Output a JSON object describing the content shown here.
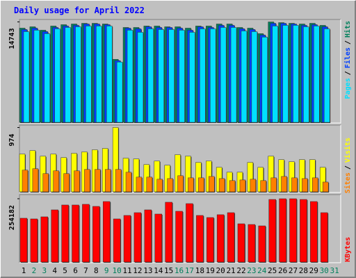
{
  "legend_separator": "/",
  "chart_data": [
    {
      "type": "bar",
      "title": "Daily usage for April 2022",
      "ylim": [
        0,
        15000
      ],
      "yticks": [
        14743
      ],
      "series": [
        {
          "name": "Hits",
          "color": "#00805C",
          "values": [
            13830,
            14030,
            13530,
            14140,
            14340,
            14440,
            14540,
            14540,
            14440,
            9250,
            13930,
            13930,
            14140,
            14140,
            14030,
            14030,
            13830,
            14140,
            14140,
            14440,
            14440,
            13930,
            13830,
            13020,
            14743,
            14640,
            14540,
            14440,
            14540,
            14240,
            null
          ]
        },
        {
          "name": "Files",
          "color": "#0040FF",
          "values": [
            13630,
            13830,
            13320,
            13930,
            14140,
            14240,
            14440,
            14440,
            14340,
            9050,
            13830,
            13730,
            14030,
            13930,
            13930,
            13830,
            13530,
            14030,
            13930,
            14240,
            14240,
            13730,
            13630,
            12810,
            14540,
            14540,
            14440,
            14240,
            14340,
            14030,
            null
          ]
        },
        {
          "name": "Pages",
          "color": "#00E0FF",
          "values": [
            13320,
            13530,
            13020,
            13730,
            13930,
            14030,
            14140,
            14140,
            14140,
            8850,
            13530,
            13220,
            13730,
            13630,
            13630,
            13530,
            13220,
            13730,
            13730,
            13930,
            13930,
            13420,
            13320,
            12510,
            14140,
            14240,
            14240,
            14030,
            14140,
            13730,
            null
          ]
        }
      ]
    },
    {
      "type": "bar",
      "ylim": [
        0,
        1000
      ],
      "yticks": [
        974
      ],
      "series": [
        {
          "name": "Visits",
          "color": "#FFFF00",
          "values": [
            572,
            625,
            540,
            572,
            519,
            583,
            604,
            636,
            657,
            974,
            509,
            498,
            413,
            466,
            403,
            562,
            540,
            445,
            466,
            371,
            297,
            297,
            445,
            371,
            540,
            487,
            456,
            487,
            487,
            371,
            null
          ]
        },
        {
          "name": "Sites",
          "color": "#FF8000",
          "values": [
            329,
            350,
            276,
            318,
            276,
            318,
            339,
            339,
            339,
            339,
            297,
            223,
            223,
            191,
            201,
            244,
            212,
            212,
            233,
            201,
            170,
            180,
            191,
            170,
            212,
            233,
            212,
            201,
            212,
            148,
            null
          ]
        }
      ]
    },
    {
      "type": "bar",
      "ylim": [
        0,
        268000
      ],
      "yticks": [
        254182
      ],
      "categories": [
        "1",
        "2",
        "3",
        "4",
        "5",
        "6",
        "7",
        "8",
        "9",
        "10",
        "11",
        "12",
        "13",
        "14",
        "15",
        "16",
        "17",
        "18",
        "19",
        "20",
        "21",
        "22",
        "23",
        "24",
        "25",
        "26",
        "27",
        "28",
        "29",
        "30",
        "31"
      ],
      "category_colors": [
        "#000000",
        "#00805C",
        "#00805C",
        "#000000",
        "#000000",
        "#000000",
        "#000000",
        "#000000",
        "#00805C",
        "#00805C",
        "#000000",
        "#000000",
        "#000000",
        "#000000",
        "#000000",
        "#00805C",
        "#00805C",
        "#000000",
        "#000000",
        "#000000",
        "#000000",
        "#000000",
        "#00805C",
        "#00805C",
        "#000000",
        "#000000",
        "#000000",
        "#000000",
        "#000000",
        "#00805C",
        "#00805C"
      ],
      "series": [
        {
          "name": "KBytes",
          "color": "#FF0000",
          "values": [
            175960,
            173170,
            181550,
            209480,
            229030,
            229030,
            231820,
            223440,
            243000,
            173170,
            187130,
            198300,
            209480,
            192720,
            240200,
            203890,
            234620,
            187130,
            178750,
            190100,
            198300,
            153600,
            150800,
            145240,
            251380,
            254182,
            254182,
            251380,
            243000,
            198300,
            null
          ]
        }
      ]
    }
  ]
}
